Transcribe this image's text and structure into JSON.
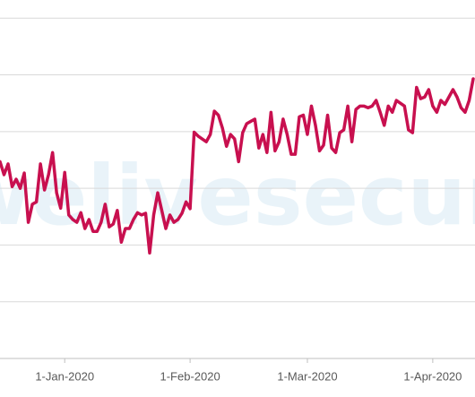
{
  "chart_data": {
    "type": "line",
    "watermark": "welivesecurity",
    "x": [
      "2019-12-16",
      "2019-12-17",
      "2019-12-18",
      "2019-12-19",
      "2019-12-20",
      "2019-12-21",
      "2019-12-22",
      "2019-12-23",
      "2019-12-24",
      "2019-12-25",
      "2019-12-26",
      "2019-12-27",
      "2019-12-28",
      "2019-12-29",
      "2019-12-30",
      "2019-12-31",
      "2020-01-01",
      "2020-01-02",
      "2020-01-03",
      "2020-01-04",
      "2020-01-05",
      "2020-01-06",
      "2020-01-07",
      "2020-01-08",
      "2020-01-09",
      "2020-01-10",
      "2020-01-11",
      "2020-01-12",
      "2020-01-13",
      "2020-01-14",
      "2020-01-15",
      "2020-01-16",
      "2020-01-17",
      "2020-01-18",
      "2020-01-19",
      "2020-01-20",
      "2020-01-21",
      "2020-01-22",
      "2020-01-23",
      "2020-01-24",
      "2020-01-25",
      "2020-01-26",
      "2020-01-27",
      "2020-01-28",
      "2020-01-29",
      "2020-01-30",
      "2020-01-31",
      "2020-02-01",
      "2020-02-02",
      "2020-02-03",
      "2020-02-04",
      "2020-02-05",
      "2020-02-06",
      "2020-02-07",
      "2020-02-08",
      "2020-02-09",
      "2020-02-10",
      "2020-02-11",
      "2020-02-12",
      "2020-02-13",
      "2020-02-14",
      "2020-02-15",
      "2020-02-16",
      "2020-02-17",
      "2020-02-18",
      "2020-02-19",
      "2020-02-20",
      "2020-02-21",
      "2020-02-22",
      "2020-02-23",
      "2020-02-24",
      "2020-02-25",
      "2020-02-26",
      "2020-02-27",
      "2020-02-28",
      "2020-02-29",
      "2020-03-01",
      "2020-03-02",
      "2020-03-03",
      "2020-03-04",
      "2020-03-05",
      "2020-03-06",
      "2020-03-07",
      "2020-03-08",
      "2020-03-09",
      "2020-03-10",
      "2020-03-11",
      "2020-03-12",
      "2020-03-13",
      "2020-03-14",
      "2020-03-15",
      "2020-03-16",
      "2020-03-17",
      "2020-03-18",
      "2020-03-19",
      "2020-03-20",
      "2020-03-21",
      "2020-03-22",
      "2020-03-23",
      "2020-03-24",
      "2020-03-25",
      "2020-03-26",
      "2020-03-27",
      "2020-03-28",
      "2020-03-29",
      "2020-03-30",
      "2020-03-31",
      "2020-04-01",
      "2020-04-02",
      "2020-04-03",
      "2020-04-04",
      "2020-04-05",
      "2020-04-06",
      "2020-04-07",
      "2020-04-08",
      "2020-04-09",
      "2020-04-10",
      "2020-04-11"
    ],
    "series": [
      {
        "color": "#c8104f",
        "values": [
          3.47,
          3.24,
          3.43,
          3.03,
          3.16,
          3.0,
          3.27,
          2.4,
          2.72,
          2.76,
          3.43,
          2.97,
          3.24,
          3.63,
          2.92,
          2.65,
          3.28,
          2.53,
          2.45,
          2.4,
          2.57,
          2.29,
          2.45,
          2.24,
          2.24,
          2.4,
          2.72,
          2.32,
          2.37,
          2.61,
          2.05,
          2.29,
          2.29,
          2.45,
          2.57,
          2.53,
          2.56,
          1.86,
          2.53,
          2.92,
          2.61,
          2.29,
          2.53,
          2.4,
          2.45,
          2.56,
          2.76,
          2.64,
          3.99,
          3.92,
          3.87,
          3.82,
          3.95,
          4.36,
          4.29,
          4.06,
          3.74,
          3.95,
          3.87,
          3.47,
          3.98,
          4.14,
          4.18,
          4.22,
          3.71,
          3.95,
          3.63,
          4.34,
          3.66,
          3.82,
          4.22,
          3.95,
          3.6,
          3.6,
          4.26,
          4.29,
          3.95,
          4.45,
          4.11,
          3.66,
          3.76,
          4.29,
          3.71,
          3.63,
          3.98,
          4.03,
          4.45,
          3.82,
          4.39,
          4.45,
          4.45,
          4.42,
          4.45,
          4.55,
          4.34,
          4.11,
          4.45,
          4.34,
          4.55,
          4.5,
          4.45,
          4.03,
          3.98,
          4.78,
          4.58,
          4.61,
          4.74,
          4.45,
          4.34,
          4.55,
          4.48,
          4.61,
          4.74,
          4.61,
          4.42,
          4.34,
          4.55,
          4.93
        ]
      }
    ],
    "xlim": [
      "2019-12-16",
      "2020-04-11"
    ],
    "xticks": [
      {
        "value": "2020-01-01",
        "label": "1-Jan-2020"
      },
      {
        "value": "2020-02-01",
        "label": "1-Feb-2020"
      },
      {
        "value": "2020-03-01",
        "label": "1-Mar-2020"
      },
      {
        "value": "2020-04-01",
        "label": "1-Apr-2020"
      }
    ],
    "ylim": [
      0,
      6.32
    ],
    "yticks": [
      0,
      1,
      2,
      3,
      4,
      5,
      6
    ],
    "grid": true
  }
}
